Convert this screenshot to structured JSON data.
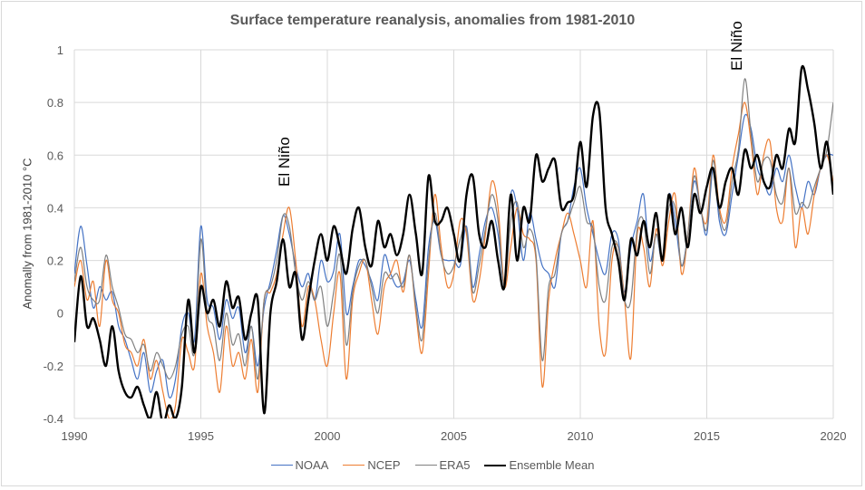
{
  "chart_data": {
    "type": "line",
    "title": "Surface temperature reanalysis, anomalies from 1981-2010",
    "xlabel": "",
    "ylabel": "Anomally from 1981-2010 °C",
    "xlim": [
      1990,
      2020
    ],
    "ylim": [
      -0.4,
      1.0
    ],
    "x_ticks": [
      "1990",
      "1995",
      "2000",
      "2005",
      "2010",
      "2015",
      "2020"
    ],
    "x_tick_values": [
      1990,
      1995,
      2000,
      2005,
      2010,
      2015,
      2020
    ],
    "y_ticks": [
      "-0.4",
      "-0.2",
      "0",
      "0.2",
      "0.4",
      "0.6",
      "0.8",
      "1"
    ],
    "y_tick_values": [
      -0.4,
      -0.2,
      0,
      0.2,
      0.4,
      0.6,
      0.8,
      1.0
    ],
    "grid": "major-both",
    "legend_position": "bottom",
    "x_step": 0.25,
    "x_start": 1990,
    "series": [
      {
        "name": "NOAA",
        "color": "#4472c4",
        "width": 1.2,
        "values": [
          0.15,
          0.33,
          0.18,
          0.02,
          0.1,
          0.05,
          0.08,
          -0.05,
          -0.1,
          -0.18,
          -0.25,
          -0.15,
          -0.3,
          -0.22,
          -0.18,
          -0.32,
          -0.25,
          -0.05,
          0.0,
          -0.1,
          0.33,
          0.05,
          0.02,
          -0.1,
          0.05,
          -0.02,
          0.02,
          -0.15,
          -0.05,
          -0.2,
          0.02,
          0.12,
          0.24,
          0.37,
          0.3,
          0.18,
          0.1,
          0.15,
          0.05,
          0.2,
          0.12,
          0.16,
          0.3,
          0.0,
          0.1,
          0.2,
          0.18,
          0.12,
          0.05,
          0.22,
          0.15,
          0.1,
          0.12,
          0.2,
          0.05,
          -0.05,
          0.25,
          0.35,
          0.22,
          0.2,
          0.2,
          0.18,
          0.33,
          0.1,
          0.22,
          0.35,
          0.4,
          0.3,
          0.12,
          0.45,
          0.4,
          0.2,
          0.38,
          0.28,
          0.18,
          0.15,
          0.1,
          0.3,
          0.35,
          0.48,
          0.55,
          0.4,
          0.3,
          0.2,
          0.15,
          0.3,
          0.28,
          0.08,
          0.25,
          0.35,
          0.45,
          0.2,
          0.3,
          0.2,
          0.45,
          0.35,
          0.18,
          0.3,
          0.5,
          0.4,
          0.3,
          0.55,
          0.35,
          0.3,
          0.45,
          0.6,
          0.75,
          0.7,
          0.55,
          0.5,
          0.45,
          0.55,
          0.5,
          0.6,
          0.48,
          0.4,
          0.5,
          0.45,
          0.55,
          0.6,
          0.6
        ]
      },
      {
        "name": "NCEP",
        "color": "#ed7d31",
        "width": 1.2,
        "values": [
          0.1,
          0.2,
          0.05,
          0.12,
          -0.05,
          0.2,
          0.05,
          0.0,
          -0.12,
          -0.15,
          -0.2,
          -0.1,
          -0.25,
          -0.18,
          -0.3,
          -0.4,
          -0.35,
          -0.1,
          -0.15,
          -0.2,
          0.15,
          -0.05,
          -0.15,
          -0.3,
          -0.05,
          -0.2,
          -0.15,
          -0.25,
          -0.1,
          -0.3,
          0.05,
          0.08,
          0.15,
          0.3,
          0.4,
          0.2,
          -0.05,
          0.1,
          0.05,
          -0.1,
          -0.2,
          0.0,
          0.15,
          -0.25,
          0.05,
          0.15,
          0.2,
          0.05,
          -0.08,
          0.1,
          0.15,
          0.2,
          0.08,
          0.22,
          0.0,
          -0.15,
          0.15,
          0.45,
          0.25,
          0.1,
          0.15,
          0.35,
          0.3,
          0.05,
          0.12,
          0.3,
          0.5,
          0.4,
          0.1,
          0.25,
          0.4,
          0.3,
          0.28,
          0.2,
          -0.28,
          0.05,
          0.2,
          0.3,
          0.38,
          0.3,
          0.2,
          0.1,
          0.35,
          -0.05,
          -0.15,
          0.2,
          0.25,
          0.05,
          -0.17,
          0.3,
          0.25,
          0.1,
          0.32,
          0.18,
          0.35,
          0.45,
          0.15,
          0.3,
          0.55,
          0.4,
          0.35,
          0.6,
          0.4,
          0.35,
          0.55,
          0.68,
          0.8,
          0.65,
          0.45,
          0.6,
          0.65,
          0.4,
          0.35,
          0.55,
          0.25,
          0.4,
          0.3,
          0.45,
          0.55,
          0.6,
          0.5
        ]
      },
      {
        "name": "ERA5",
        "color": "#7f7f7f",
        "width": 1.2,
        "values": [
          0.12,
          0.25,
          0.1,
          0.05,
          0.05,
          0.22,
          0.1,
          0.02,
          -0.08,
          -0.1,
          -0.15,
          -0.12,
          -0.22,
          -0.15,
          -0.2,
          -0.25,
          -0.2,
          -0.08,
          -0.05,
          -0.15,
          0.28,
          0.0,
          -0.05,
          -0.18,
          0.0,
          -0.12,
          -0.08,
          -0.2,
          -0.05,
          -0.25,
          0.05,
          0.1,
          0.2,
          0.37,
          0.33,
          0.15,
          0.05,
          0.12,
          0.05,
          0.1,
          -0.05,
          0.08,
          0.22,
          -0.12,
          0.08,
          0.18,
          0.2,
          0.1,
          0.0,
          0.15,
          0.13,
          0.15,
          0.1,
          0.22,
          0.02,
          -0.1,
          0.2,
          0.38,
          0.22,
          0.15,
          0.18,
          0.28,
          0.32,
          0.08,
          0.18,
          0.32,
          0.45,
          0.35,
          0.1,
          0.35,
          0.42,
          0.25,
          0.32,
          0.22,
          -0.18,
          0.1,
          0.15,
          0.3,
          0.35,
          0.42,
          0.48,
          0.35,
          0.32,
          0.1,
          0.05,
          0.25,
          0.25,
          0.05,
          0.05,
          0.32,
          0.35,
          0.15,
          0.3,
          0.2,
          0.4,
          0.4,
          0.18,
          0.3,
          0.52,
          0.4,
          0.32,
          0.58,
          0.38,
          0.32,
          0.5,
          0.62,
          0.89,
          0.68,
          0.5,
          0.58,
          0.58,
          0.45,
          0.42,
          0.55,
          0.38,
          0.42,
          0.4,
          0.48,
          0.55,
          0.62,
          0.8
        ]
      },
      {
        "name": "Ensemble Mean",
        "color": "#000000",
        "width": 2.4,
        "values": [
          -0.11,
          0.14,
          -0.05,
          -0.02,
          -0.1,
          -0.2,
          -0.05,
          -0.22,
          -0.3,
          -0.32,
          -0.28,
          -0.35,
          -0.4,
          -0.3,
          -0.42,
          -0.35,
          -0.4,
          -0.28,
          0.05,
          -0.15,
          0.1,
          0.0,
          0.05,
          -0.05,
          0.12,
          0.02,
          0.06,
          -0.1,
          0.0,
          0.05,
          -0.38,
          0.0,
          0.12,
          0.28,
          0.1,
          0.15,
          -0.1,
          0.05,
          0.2,
          0.3,
          0.2,
          0.33,
          0.25,
          0.15,
          0.32,
          0.4,
          0.25,
          0.18,
          0.35,
          0.25,
          0.3,
          0.22,
          0.3,
          0.45,
          0.3,
          0.15,
          0.52,
          0.35,
          0.35,
          0.4,
          0.3,
          0.2,
          0.45,
          0.52,
          0.3,
          0.25,
          0.35,
          0.2,
          0.1,
          0.45,
          0.2,
          0.4,
          0.35,
          0.6,
          0.5,
          0.55,
          0.58,
          0.4,
          0.42,
          0.45,
          0.65,
          0.48,
          0.75,
          0.77,
          0.4,
          0.3,
          0.2,
          0.05,
          0.28,
          0.22,
          0.35,
          0.25,
          0.38,
          0.2,
          0.45,
          0.3,
          0.4,
          0.25,
          0.45,
          0.38,
          0.48,
          0.55,
          0.4,
          0.5,
          0.55,
          0.45,
          0.62,
          0.55,
          0.6,
          0.5,
          0.48,
          0.6,
          0.55,
          0.7,
          0.65,
          0.93,
          0.85,
          0.72,
          0.55,
          0.65,
          0.45
        ]
      }
    ],
    "annotations": [
      {
        "text": "El Niño",
        "x": 1998.3,
        "y": 0.48,
        "rotation": -90
      },
      {
        "text": "El Niño",
        "x": 2016.2,
        "y": 0.92,
        "rotation": -90
      }
    ]
  }
}
